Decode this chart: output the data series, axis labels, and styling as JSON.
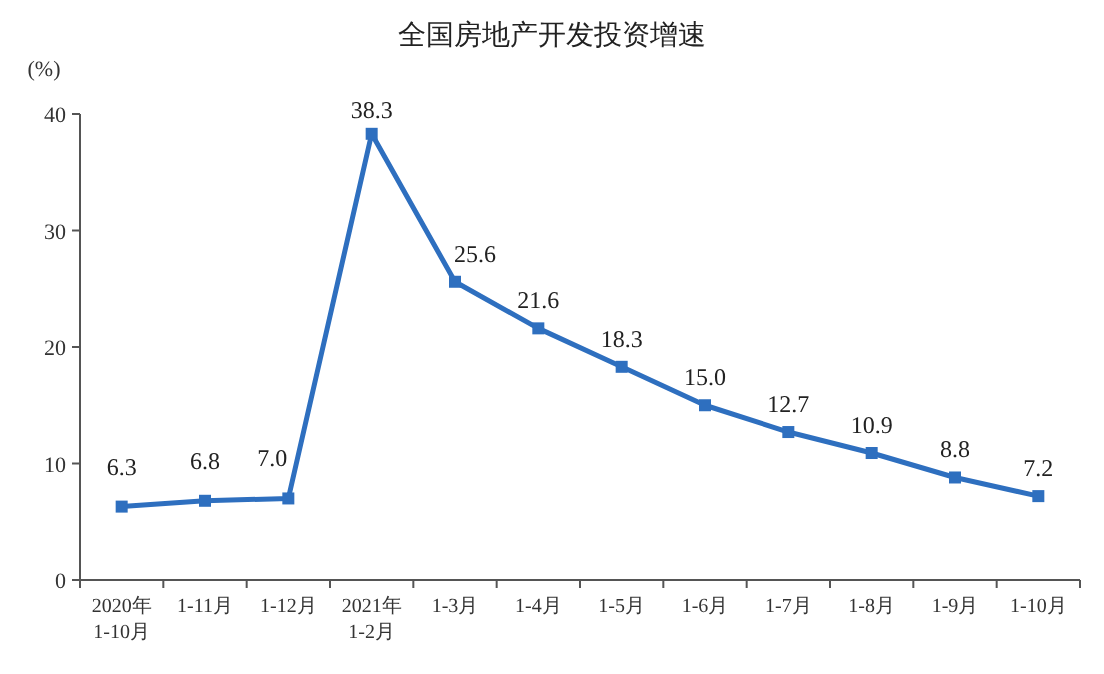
{
  "chart_data": {
    "type": "line",
    "title": "全国房地产开发投资增速",
    "ylabel": "(%)",
    "categories": [
      "2020年\n1-10月",
      "1-11月",
      "1-12月",
      "2021年\n1-2月",
      "1-3月",
      "1-4月",
      "1-5月",
      "1-6月",
      "1-7月",
      "1-8月",
      "1-9月",
      "1-10月"
    ],
    "series": [
      {
        "color": "#2e6fbf",
        "values": [
          6.3,
          6.8,
          7.0,
          38.3,
          25.6,
          21.6,
          18.3,
          15.0,
          12.7,
          10.9,
          8.8,
          7.2
        ],
        "value_labels": [
          "6.3",
          "6.8",
          "7.0",
          "38.3",
          "25.6",
          "21.6",
          "18.3",
          "15.0",
          "12.7",
          "10.9",
          "8.8",
          "7.2"
        ]
      }
    ],
    "ylim": [
      0,
      40
    ],
    "yticks": [
      0,
      10,
      20,
      30,
      40
    ],
    "marker": "square",
    "grid": false
  }
}
